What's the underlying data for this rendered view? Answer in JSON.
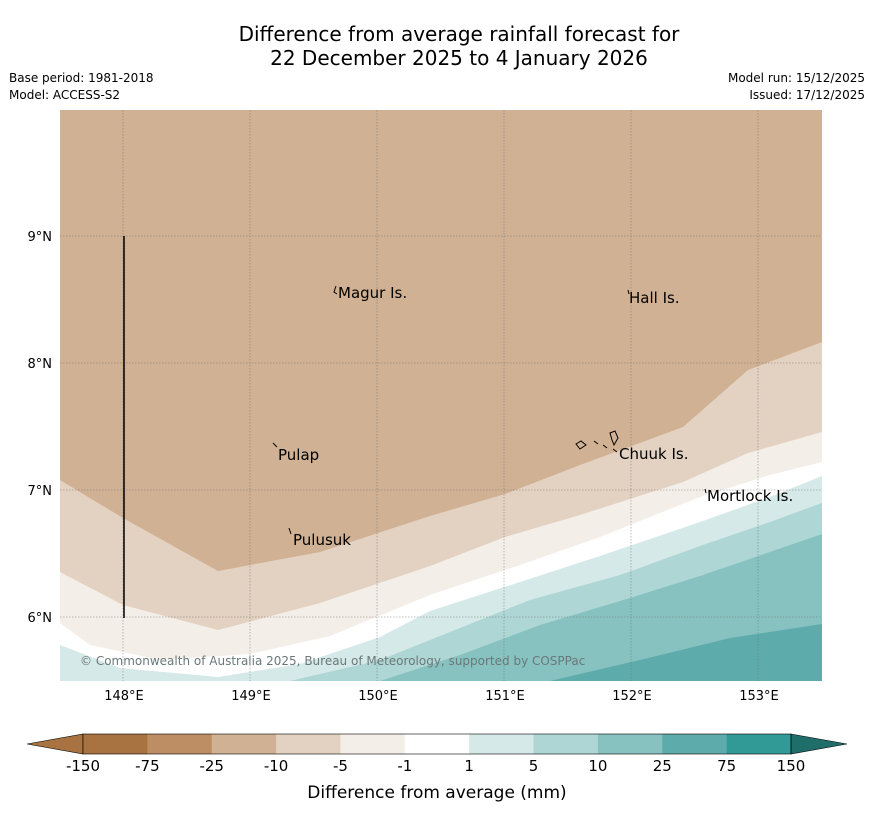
{
  "title": {
    "line1": "Difference from average rainfall forecast for",
    "line2": "22 December 2025 to 4 January 2026"
  },
  "meta": {
    "base_period": "Base period: 1981-2018",
    "model": "Model: ACCESS-S2",
    "model_run": "Model run: 15/12/2025",
    "issued": "Issued: 17/12/2025"
  },
  "map": {
    "lon_labels": [
      "148°E",
      "149°E",
      "150°E",
      "151°E",
      "152°E",
      "153°E"
    ],
    "lat_labels": [
      "9°N",
      "8°N",
      "7°N",
      "6°N"
    ],
    "islands": [
      {
        "key": "magur",
        "name": "Magur Is."
      },
      {
        "key": "hall",
        "name": "Hall Is."
      },
      {
        "key": "pulap",
        "name": "Pulap"
      },
      {
        "key": "chuuk",
        "name": "Chuuk Is."
      },
      {
        "key": "mortlock",
        "name": "Mortlock Is."
      },
      {
        "key": "pulusuk",
        "name": "Pulusuk"
      }
    ],
    "copyright": "© Commonwealth of Australia 2025, Bureau of Meteorology, supported by COSPPac",
    "band_colors": {
      "b_neg25_neg10": "#d0b193",
      "b_neg10_neg5": "#e3d1c1",
      "b_neg5_neg1": "#f4eee9",
      "b_neg1_1": "#ffffff",
      "b_1_5": "#d5e9e8",
      "b_5_10": "#aed6d5",
      "b_10_25": "#87c2c1",
      "b_25_75": "#5dacab"
    }
  },
  "colorbar": {
    "title": "Difference from average (mm)",
    "ticks": [
      "-150",
      "-75",
      "-25",
      "-10",
      "-5",
      "-1",
      "1",
      "5",
      "10",
      "25",
      "75",
      "150"
    ],
    "colors": [
      "#a87241",
      "#bd8e63",
      "#d0b193",
      "#e3d1c1",
      "#f4eee9",
      "#ffffff",
      "#d5e9e8",
      "#aed6d5",
      "#87c2c1",
      "#5dacab",
      "#319a97"
    ],
    "under_color": "#a87241",
    "over_color": "#1f6e69"
  }
}
